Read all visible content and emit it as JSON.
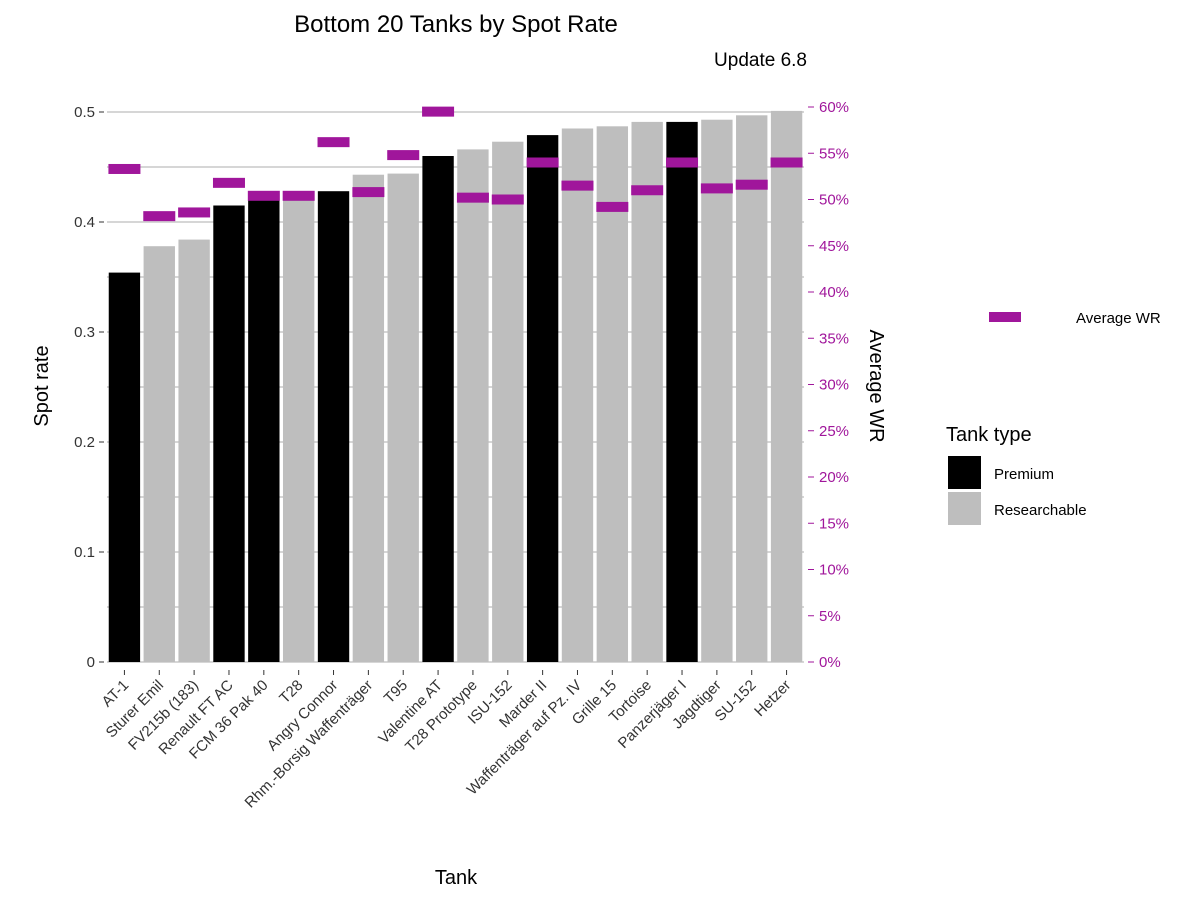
{
  "colors": {
    "premium": "#000000",
    "researchable": "#bebebe",
    "average_wr": "#a0169b",
    "grid": "#c8c8c8"
  },
  "chart_data": {
    "type": "bar",
    "title": "Bottom 20 Tanks by Spot Rate",
    "subtitle": "Update 6.8",
    "xlabel": "Tank",
    "ylabel": "Spot rate",
    "y2label": "Average WR",
    "ylim": [
      0,
      0.5
    ],
    "y_ticks": [
      "0",
      "0.1",
      "0.2",
      "0.3",
      "0.4",
      "0.5"
    ],
    "y2lim": [
      0,
      60
    ],
    "y2_ticks": [
      "0%",
      "5%",
      "10%",
      "15%",
      "20%",
      "25%",
      "30%",
      "35%",
      "40%",
      "45%",
      "50%",
      "55%",
      "60%"
    ],
    "grid": true,
    "categories": [
      "AT-1",
      "Sturer Emil",
      "FV215b (183)",
      "Renault FT AC",
      "FCM 36 Pak 40",
      "T28",
      "Angry Connor",
      "Rhm.-Borsig Waffenträger",
      "T95",
      "Valentine AT",
      "T28 Prototype",
      "ISU-152",
      "Marder II",
      "Waffenträger auf Pz. IV",
      "Grille 15",
      "Tortoise",
      "Panzerjäger I",
      "Jagdtiger",
      "SU-152",
      "Hetzer"
    ],
    "tank_type": [
      "Premium",
      "Researchable",
      "Researchable",
      "Premium",
      "Premium",
      "Researchable",
      "Premium",
      "Researchable",
      "Researchable",
      "Premium",
      "Researchable",
      "Researchable",
      "Premium",
      "Researchable",
      "Researchable",
      "Researchable",
      "Premium",
      "Researchable",
      "Researchable",
      "Researchable"
    ],
    "series": [
      {
        "name": "Spot rate",
        "values": [
          0.354,
          0.378,
          0.384,
          0.415,
          0.421,
          0.421,
          0.428,
          0.443,
          0.444,
          0.46,
          0.466,
          0.473,
          0.479,
          0.485,
          0.487,
          0.491,
          0.491,
          0.493,
          0.497,
          0.501
        ]
      },
      {
        "name": "Average WR",
        "values": [
          53.3,
          48.2,
          48.6,
          51.8,
          50.4,
          50.4,
          56.2,
          50.8,
          54.8,
          59.5,
          50.2,
          50.0,
          54.0,
          51.5,
          49.2,
          51.0,
          54.0,
          51.2,
          51.6,
          54.0
        ]
      }
    ],
    "legend": {
      "line_label": "Average WR",
      "fill_title": "Tank type",
      "fill_items": [
        "Premium",
        "Researchable"
      ],
      "placement": "right"
    }
  }
}
